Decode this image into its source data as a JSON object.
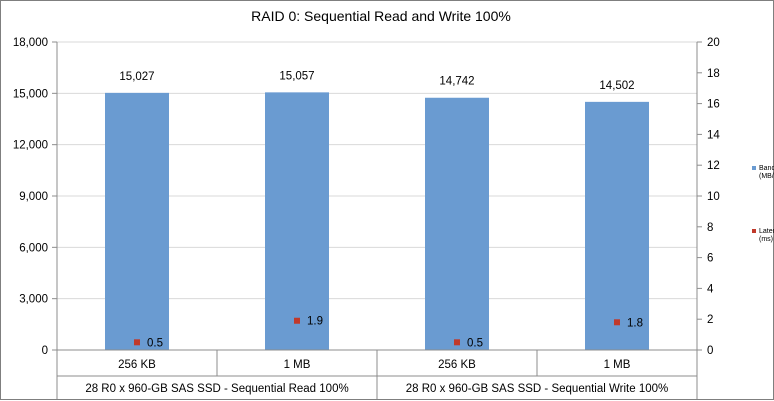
{
  "chart_data": {
    "type": "bar",
    "title": "RAID 0: Sequential Read and Write 100%",
    "categories": [
      "256 KB",
      "1 MB",
      "256 KB",
      "1 MB"
    ],
    "groups": [
      "28 R0 x 960-GB SAS SSD - Sequential Read 100%",
      "28 R0 x 960-GB SAS SSD - Sequential Write 100%"
    ],
    "series": [
      {
        "name": "Bandwidth (MB/s)",
        "legend_lines": [
          "Bandwidth",
          "(MB/s)"
        ],
        "axis": "primary",
        "values": [
          15027,
          15057,
          14742,
          14502
        ],
        "labels": [
          "15,027",
          "15,057",
          "14,742",
          "14,502"
        ],
        "color": "#6a9bd1"
      },
      {
        "name": "Latency (ms)",
        "legend_lines": [
          "Latency",
          "(ms)"
        ],
        "axis": "secondary",
        "values": [
          0.5,
          1.9,
          0.5,
          1.8
        ],
        "labels": [
          "0.5",
          "1.9",
          "0.5",
          "1.8"
        ],
        "color": "#c0392b"
      }
    ],
    "ylim": [
      0,
      18000
    ],
    "yticks": [
      "0",
      "3,000",
      "6,000",
      "9,000",
      "12,000",
      "15,000",
      "18,000"
    ],
    "y2lim": [
      0,
      20
    ],
    "y2ticks": [
      "0",
      "2",
      "4",
      "6",
      "8",
      "10",
      "12",
      "14",
      "16",
      "18",
      "20"
    ],
    "grid": true,
    "legend_position": "right"
  }
}
